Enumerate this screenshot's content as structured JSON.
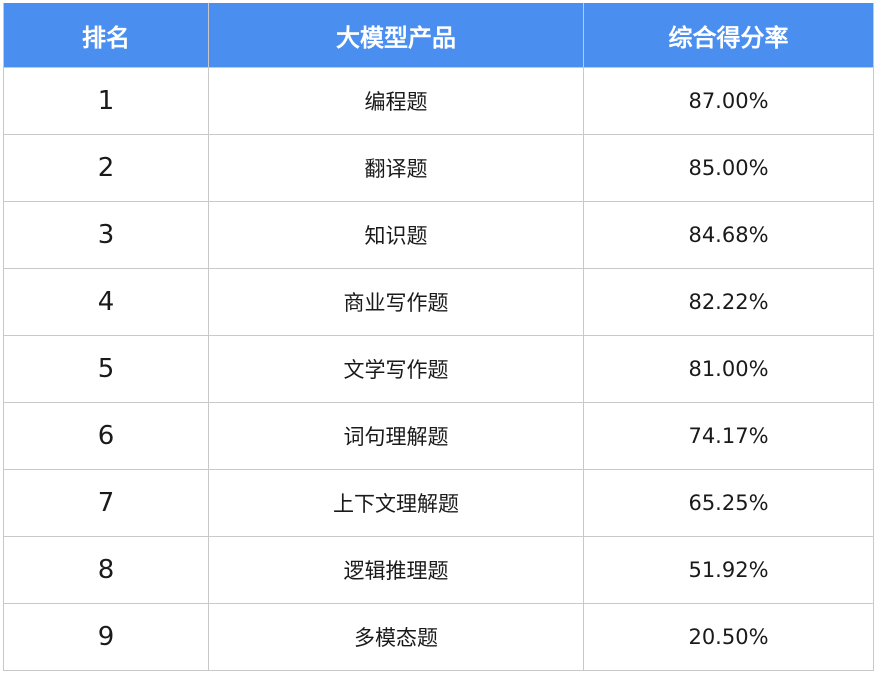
{
  "table": {
    "headers": [
      "排名",
      "大模型产品",
      "综合得分率"
    ],
    "rows": [
      {
        "rank": "1",
        "product": "编程题",
        "score": "87.00%"
      },
      {
        "rank": "2",
        "product": "翻译题",
        "score": "85.00%"
      },
      {
        "rank": "3",
        "product": "知识题",
        "score": "84.68%"
      },
      {
        "rank": "4",
        "product": "商业写作题",
        "score": "82.22%"
      },
      {
        "rank": "5",
        "product": "文学写作题",
        "score": "81.00%"
      },
      {
        "rank": "6",
        "product": "词句理解题",
        "score": "74.17%"
      },
      {
        "rank": "7",
        "product": "上下文理解题",
        "score": "65.25%"
      },
      {
        "rank": "8",
        "product": "逻辑推理题",
        "score": "51.92%"
      },
      {
        "rank": "9",
        "product": "多模态题",
        "score": "20.50%"
      }
    ]
  },
  "colors": {
    "header_bg": "#4a8ff0",
    "header_text": "#ffffff",
    "border": "#c9c9c9"
  }
}
